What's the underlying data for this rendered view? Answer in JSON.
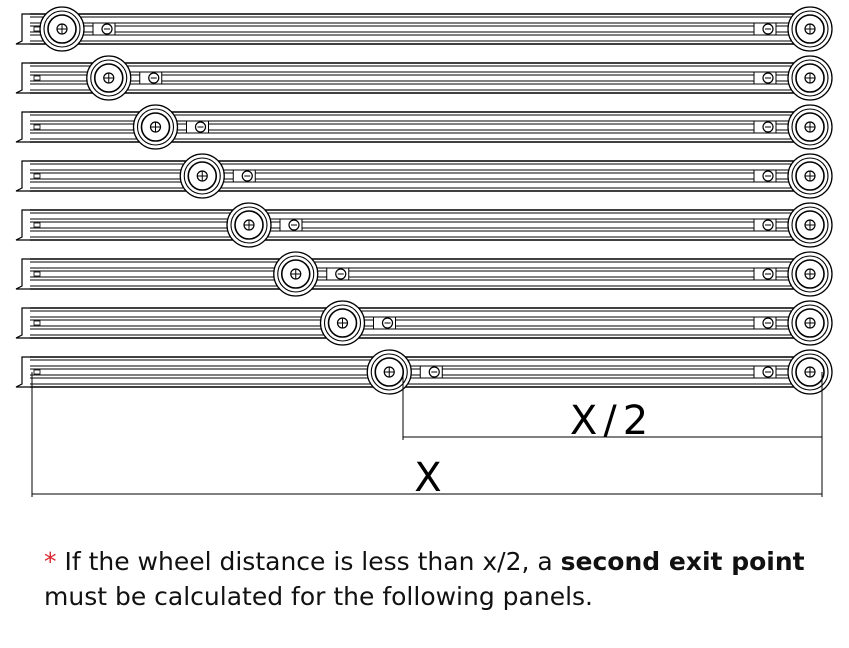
{
  "drawing": {
    "panel_count": 8,
    "wheel_positions": [
      0.0,
      0.0625,
      0.125,
      0.1875,
      0.25,
      0.3125,
      0.375,
      0.4375
    ],
    "dimensions": {
      "half_label": "X/2",
      "full_label": "X"
    }
  },
  "note": {
    "asterisk": "*",
    "text_before": " If the wheel distance is less than x/2, a ",
    "emphasis": "second exit point",
    "text_after": " must be calculated for the following panels."
  },
  "colors": {
    "line": "#000000",
    "asterisk": "#d8262d"
  }
}
